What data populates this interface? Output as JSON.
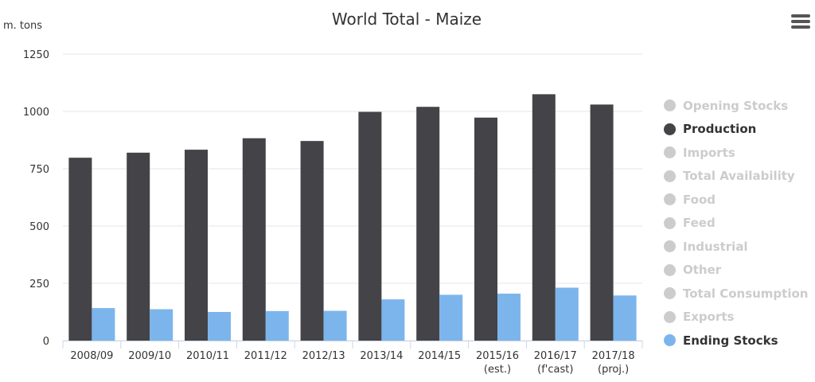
{
  "chart_data": {
    "type": "bar",
    "title": "World Total - Maize",
    "ylabel": "m. tons",
    "ylim": [
      0,
      1250
    ],
    "yticks": [
      "0",
      "250",
      "500",
      "750",
      "1000",
      "1250"
    ],
    "grid": true,
    "legend_position": "right",
    "categories": [
      [
        "2008/09"
      ],
      [
        "2009/10"
      ],
      [
        "2010/11"
      ],
      [
        "2011/12"
      ],
      [
        "2012/13"
      ],
      [
        "2013/14"
      ],
      [
        "2014/15"
      ],
      [
        "2015/16",
        "(est.)"
      ],
      [
        "2016/17",
        "(f'cast)"
      ],
      [
        "2017/18",
        "(proj.)"
      ]
    ],
    "series": [
      {
        "name": "Production",
        "color": "#434348",
        "values": [
          798,
          820,
          833,
          883,
          871,
          998,
          1020,
          973,
          1075,
          1030
        ]
      },
      {
        "name": "Ending Stocks",
        "color": "#7cb5ec",
        "values": [
          142,
          137,
          125,
          129,
          130,
          180,
          200,
          205,
          231,
          197
        ]
      }
    ]
  },
  "legend": [
    {
      "label": "Opening Stocks",
      "active": false
    },
    {
      "label": "Production",
      "active": true,
      "color": "#434348"
    },
    {
      "label": "Imports",
      "active": false
    },
    {
      "label": "Total Availability",
      "active": false
    },
    {
      "label": "Food",
      "active": false
    },
    {
      "label": "Feed",
      "active": false
    },
    {
      "label": "Industrial",
      "active": false
    },
    {
      "label": "Other",
      "active": false
    },
    {
      "label": "Total Consumption",
      "active": false
    },
    {
      "label": "Exports",
      "active": false
    },
    {
      "label": "Ending Stocks",
      "active": true,
      "color": "#7cb5ec"
    }
  ],
  "menu_icon": "hamburger-menu-icon"
}
